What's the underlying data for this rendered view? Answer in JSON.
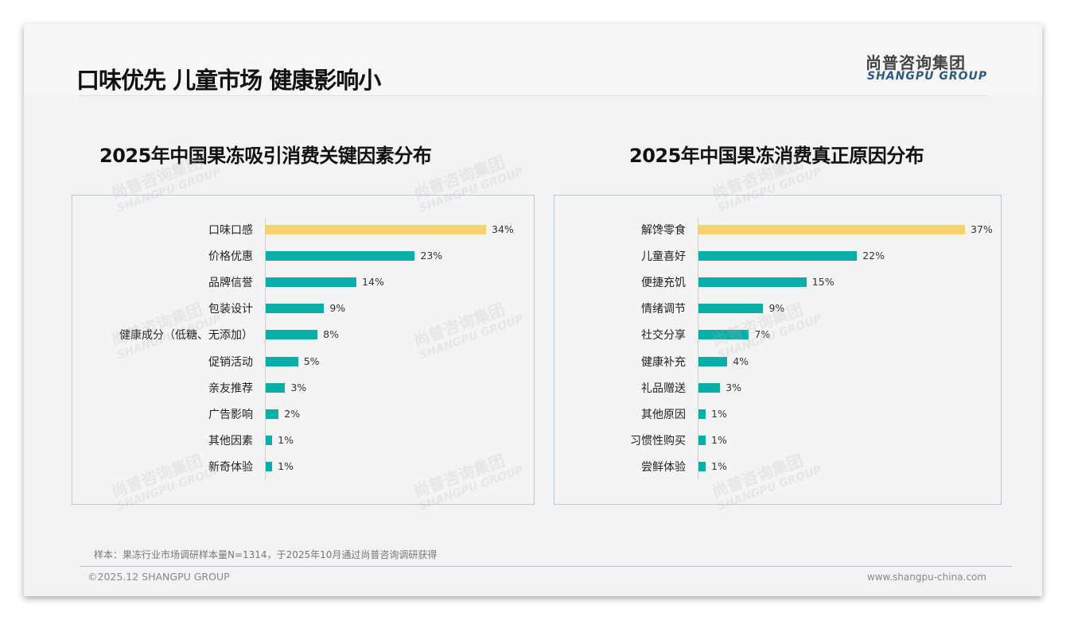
{
  "header": {
    "title": "口味优先 儿童市场 健康影响小",
    "logo_cn": "尚普咨询集团",
    "logo_en": "SHANGPU GROUP"
  },
  "colors": {
    "highlight": "#fcd06a",
    "bar": "#0aaea8"
  },
  "chart_data": [
    {
      "type": "bar",
      "orientation": "horizontal",
      "title": "2025年中国果冻吸引消费关键因素分布",
      "categories": [
        "口味口感",
        "价格优惠",
        "品牌信誉",
        "包装设计",
        "健康成分（低糖、无添加）",
        "促销活动",
        "亲友推荐",
        "广告影响",
        "其他因素",
        "新奇体验"
      ],
      "values": [
        34,
        23,
        14,
        9,
        8,
        5,
        3,
        2,
        1,
        1
      ],
      "labels": [
        "34%",
        "23%",
        "14%",
        "9%",
        "8%",
        "5%",
        "3%",
        "2%",
        "1%",
        "1%"
      ],
      "unit": "%",
      "xlim": [
        0,
        34
      ]
    },
    {
      "type": "bar",
      "orientation": "horizontal",
      "title": "2025年中国果冻消费真正原因分布",
      "categories": [
        "解馋零食",
        "儿童喜好",
        "便捷充饥",
        "情绪调节",
        "社交分享",
        "健康补充",
        "礼品赠送",
        "其他原因",
        "习惯性购买",
        "尝鲜体验"
      ],
      "values": [
        37,
        22,
        15,
        9,
        7,
        4,
        3,
        1,
        1,
        1
      ],
      "labels": [
        "37%",
        "22%",
        "15%",
        "9%",
        "7%",
        "4%",
        "3%",
        "1%",
        "1%",
        "1%"
      ],
      "unit": "%",
      "xlim": [
        0,
        37
      ]
    }
  ],
  "footer": {
    "note": "样本：果冻行业市场调研样本量N=1314，于2025年10月通过尚普咨询调研获得",
    "copyright": "©2025.12 SHANGPU GROUP",
    "website": "www.shangpu-china.com"
  }
}
